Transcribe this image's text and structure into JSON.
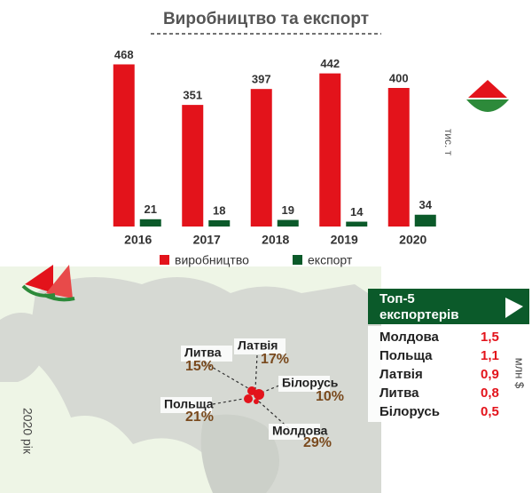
{
  "chart_data": {
    "type": "bar",
    "title": "Виробництво та експорт",
    "unit": "тис. т",
    "categories": [
      "2016",
      "2017",
      "2018",
      "2019",
      "2020"
    ],
    "series": [
      {
        "name": "виробництво",
        "color": "#e3131b",
        "values": [
          468,
          351,
          397,
          442,
          400
        ]
      },
      {
        "name": "експорт",
        "color": "#0b5a2a",
        "values": [
          21,
          18,
          19,
          14,
          34
        ]
      }
    ],
    "ylim": [
      0,
      500
    ]
  },
  "map": {
    "year": "2020 рік",
    "labels": [
      {
        "name": "Литва",
        "share": "15%"
      },
      {
        "name": "Латвія",
        "share": "17%"
      },
      {
        "name": "Білорусь",
        "share": "10%"
      },
      {
        "name": "Польща",
        "share": "21%"
      },
      {
        "name": "Молдова",
        "share": "29%"
      }
    ]
  },
  "top5": {
    "title_line1": "Топ-5",
    "title_line2": "експортерів",
    "unit": "млн $",
    "rows": [
      [
        "Молдова",
        "1,5"
      ],
      [
        "Польща",
        "1,1"
      ],
      [
        "Латвія",
        "0,9"
      ],
      [
        "Литва",
        "0,8"
      ],
      [
        "Білорусь",
        "0,5"
      ]
    ]
  }
}
